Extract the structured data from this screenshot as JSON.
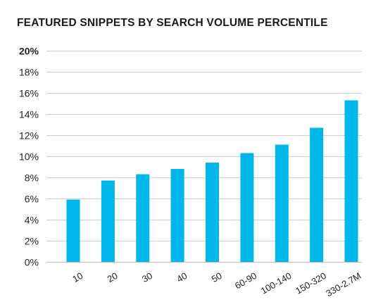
{
  "chart_data": {
    "type": "bar",
    "title": "FEATURED SNIPPETS BY SEARCH VOLUME PERCENTILE",
    "xlabel": "",
    "ylabel": "",
    "categories": [
      "10",
      "20",
      "30",
      "40",
      "50",
      "60-90",
      "100-140",
      "150-320",
      "330-2.7M"
    ],
    "values": [
      5.9,
      7.7,
      8.3,
      8.8,
      9.4,
      10.3,
      11.1,
      12.7,
      15.3
    ],
    "ylim": [
      0,
      20
    ],
    "yticks": [
      0,
      2,
      4,
      6,
      8,
      10,
      12,
      14,
      16,
      18,
      20
    ],
    "ytick_labels": [
      "0%",
      "2%",
      "4%",
      "6%",
      "8%",
      "10%",
      "12%",
      "14%",
      "16%",
      "18%",
      "20%"
    ],
    "grid": true,
    "bar_color": "#00b7eb",
    "grid_color": "#cfcfcf"
  }
}
